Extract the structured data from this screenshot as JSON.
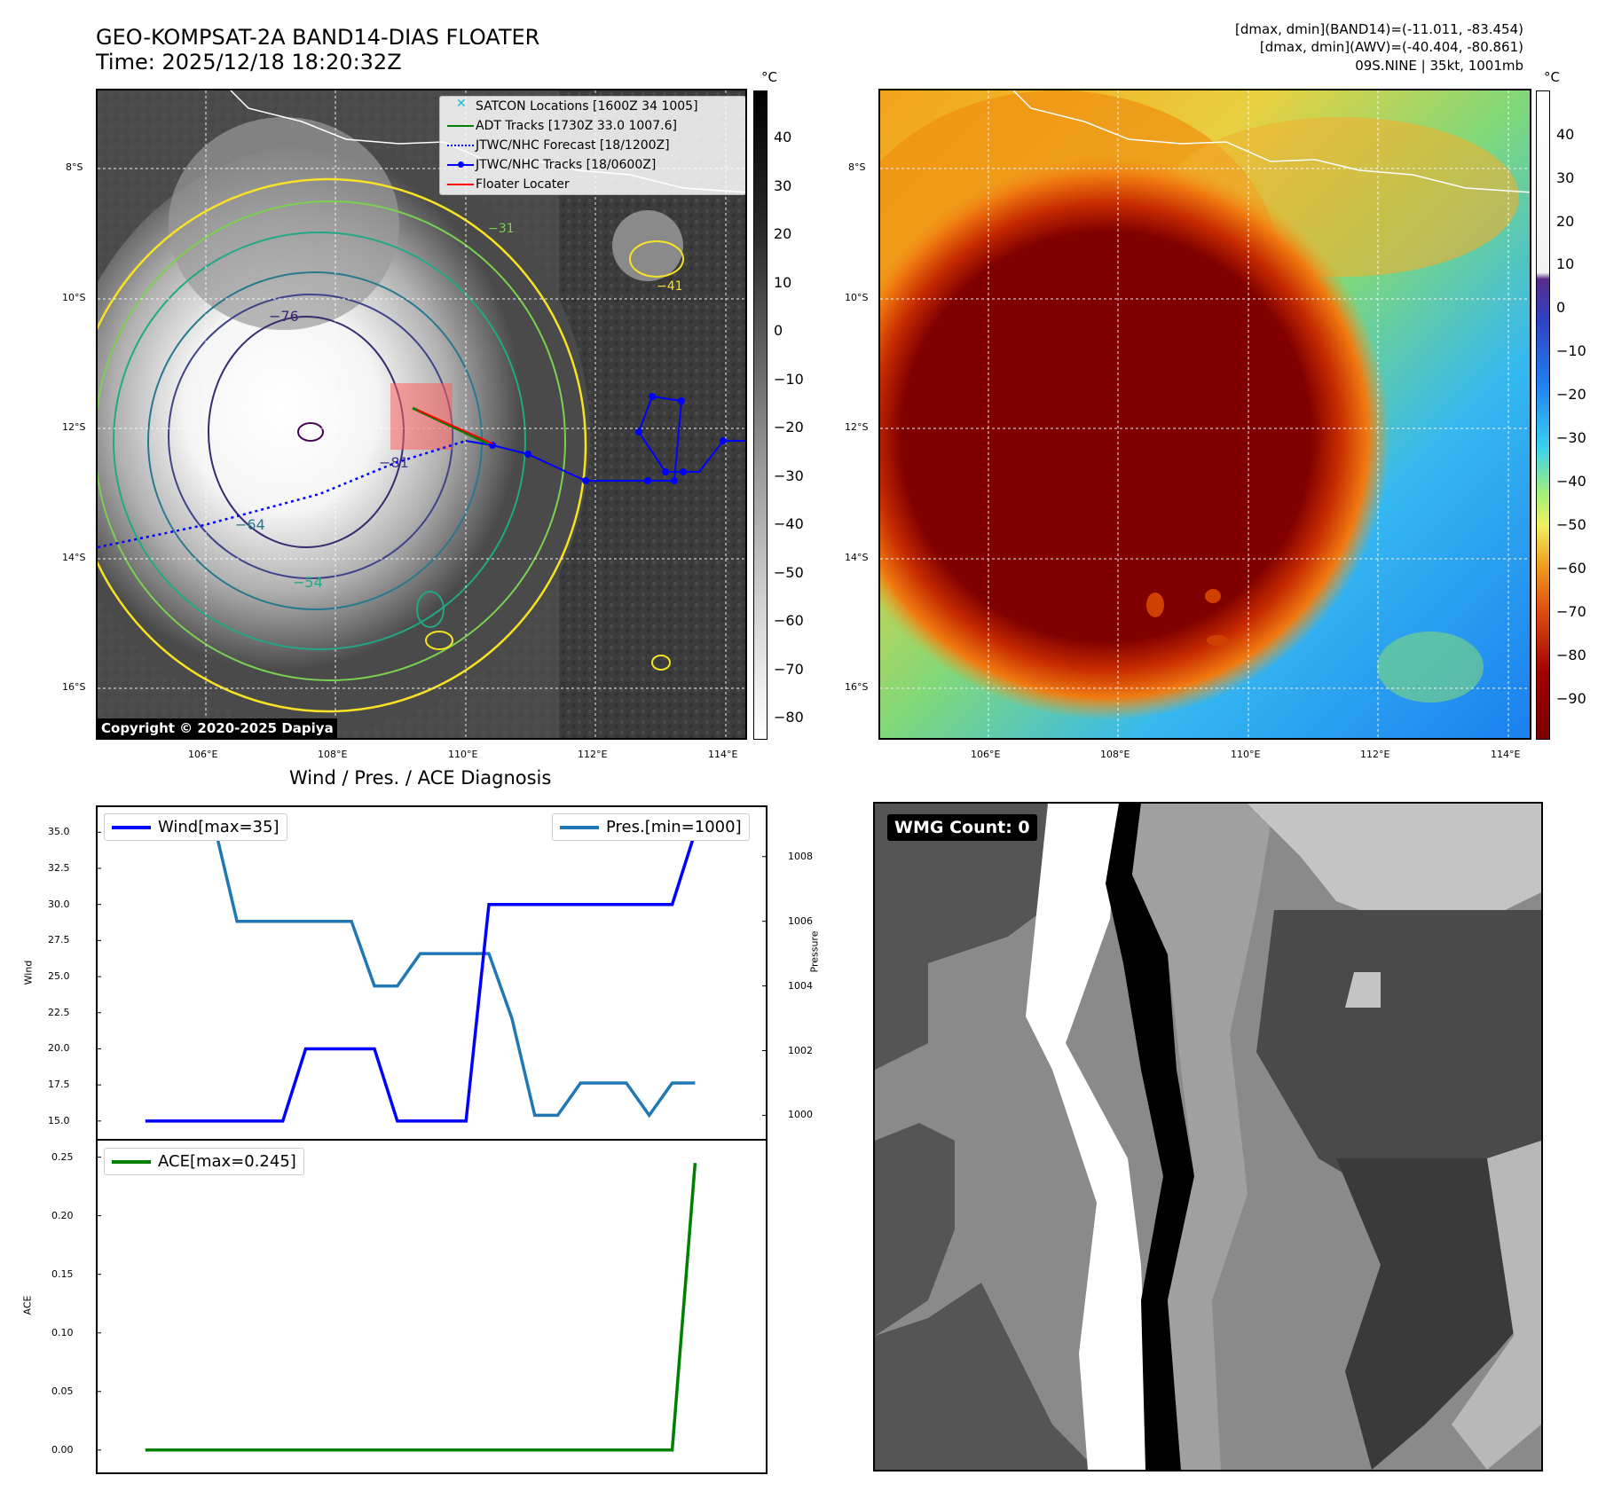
{
  "header": {
    "title_line1": "GEO-KOMPSAT-2A BAND14-DIAS FLOATER",
    "title_line2": "Time: 2025/12/18 18:20:32Z",
    "info_line1": "[dmax, dmin](BAND14)=(-11.011, -83.454)",
    "info_line2": "[dmax, dmin](AWV)=(-40.404, -80.861)",
    "info_line3": "09S.NINE | 35kt, 1001mb"
  },
  "map_ir": {
    "lat_labels": [
      "8°S",
      "10°S",
      "12°S",
      "14°S",
      "16°S"
    ],
    "lon_labels": [
      "106°E",
      "108°E",
      "110°E",
      "112°E",
      "114°E"
    ],
    "legend": [
      {
        "label": "SATCON Locations [1600Z 34 1005]",
        "color": "#17becf",
        "symbol": "x-marker"
      },
      {
        "label": "ADT Tracks [1730Z 33.0 1007.6]",
        "color": "#008000",
        "symbol": "solid-line"
      },
      {
        "label": "JTWC/NHC Forecast [18/1200Z]",
        "color": "#0000ff",
        "symbol": "dotted-line"
      },
      {
        "label": "JTWC/NHC Tracks [18/0600Z]",
        "color": "#0000ff",
        "symbol": "line-dot"
      },
      {
        "label": "Floater Locater",
        "color": "#ff0000",
        "symbol": "solid-line"
      }
    ],
    "contour_labels": [
      "−76",
      "−81",
      "−64",
      "−54",
      "−31",
      "−41"
    ],
    "copyright": "Copyright © 2020-2025 Dapiya",
    "colorbar_unit": "°C",
    "colorbar_ticks": [
      "40",
      "30",
      "20",
      "10",
      "0",
      "−10",
      "−20",
      "−30",
      "−40",
      "−50",
      "−60",
      "−70",
      "−80"
    ]
  },
  "map_awv": {
    "lat_labels": [
      "8°S",
      "10°S",
      "12°S",
      "14°S",
      "16°S"
    ],
    "lon_labels": [
      "106°E",
      "108°E",
      "110°E",
      "112°E",
      "114°E"
    ],
    "colorbar_unit": "°C",
    "colorbar_ticks": [
      "40",
      "30",
      "20",
      "10",
      "0",
      "−10",
      "−20",
      "−30",
      "−40",
      "−50",
      "−60",
      "−70",
      "−80",
      "−90"
    ]
  },
  "diagnosis": {
    "title": "Wind / Pres. / ACE Diagnosis",
    "wind_ylabel": "Wind",
    "pres_ylabel": "Pressure",
    "ace_ylabel": "ACE",
    "wind_ticks": [
      "35.0",
      "32.5",
      "30.0",
      "27.5",
      "25.0",
      "22.5",
      "20.0",
      "17.5",
      "15.0"
    ],
    "pres_ticks": [
      "1008",
      "1006",
      "1004",
      "1002",
      "1000"
    ],
    "ace_ticks": [
      "0.25",
      "0.20",
      "0.15",
      "0.10",
      "0.05",
      "0.00"
    ],
    "wind_legend": "Wind[max=35]",
    "pres_legend": "Pres.[min=1000]",
    "ace_legend": "ACE[max=0.245]",
    "colors": {
      "wind": "#0000ff",
      "pres": "#1f77b4",
      "ace": "#008000"
    }
  },
  "wmg": {
    "label": "WMG Count: 0"
  },
  "chart_data": [
    {
      "type": "line",
      "title": "Wind / Pres. / ACE Diagnosis",
      "x": [
        0,
        1,
        2,
        3,
        4,
        5,
        6,
        7,
        8,
        9,
        10,
        11,
        12,
        13,
        14,
        15,
        16,
        17,
        18,
        19,
        20,
        21,
        22,
        23,
        24
      ],
      "series": [
        {
          "name": "Wind[max=35]",
          "axis": "left",
          "ylim": [
            14.5,
            36
          ],
          "values": [
            15,
            15,
            15,
            15,
            15,
            15,
            15,
            20,
            20,
            20,
            20,
            15,
            15,
            15,
            15,
            30,
            30,
            30,
            30,
            30,
            30,
            30,
            30,
            30,
            35
          ]
        },
        {
          "name": "Pres.[min=1000]",
          "axis": "right",
          "ylim": [
            999.6,
            1009.2
          ],
          "values": [
            1009,
            1009,
            1009,
            1009,
            1006,
            1006,
            1006,
            1006,
            1006,
            1006,
            1004,
            1004,
            1005,
            1005,
            1005,
            1005,
            1003,
            1000,
            1000,
            1001,
            1001,
            1001,
            1000,
            1001,
            1001
          ]
        }
      ],
      "ylabel": "Wind",
      "y2label": "Pressure"
    },
    {
      "type": "line",
      "x": [
        0,
        1,
        2,
        3,
        4,
        5,
        6,
        7,
        8,
        9,
        10,
        11,
        12,
        13,
        14,
        15,
        16,
        17,
        18,
        19,
        20,
        21,
        22,
        23,
        24
      ],
      "series": [
        {
          "name": "ACE[max=0.245]",
          "values": [
            0,
            0,
            0,
            0,
            0,
            0,
            0,
            0,
            0,
            0,
            0,
            0,
            0,
            0,
            0,
            0,
            0,
            0,
            0,
            0,
            0,
            0,
            0,
            0,
            0.245
          ]
        }
      ],
      "ylabel": "ACE",
      "ylim": [
        -0.01,
        0.255
      ]
    }
  ]
}
